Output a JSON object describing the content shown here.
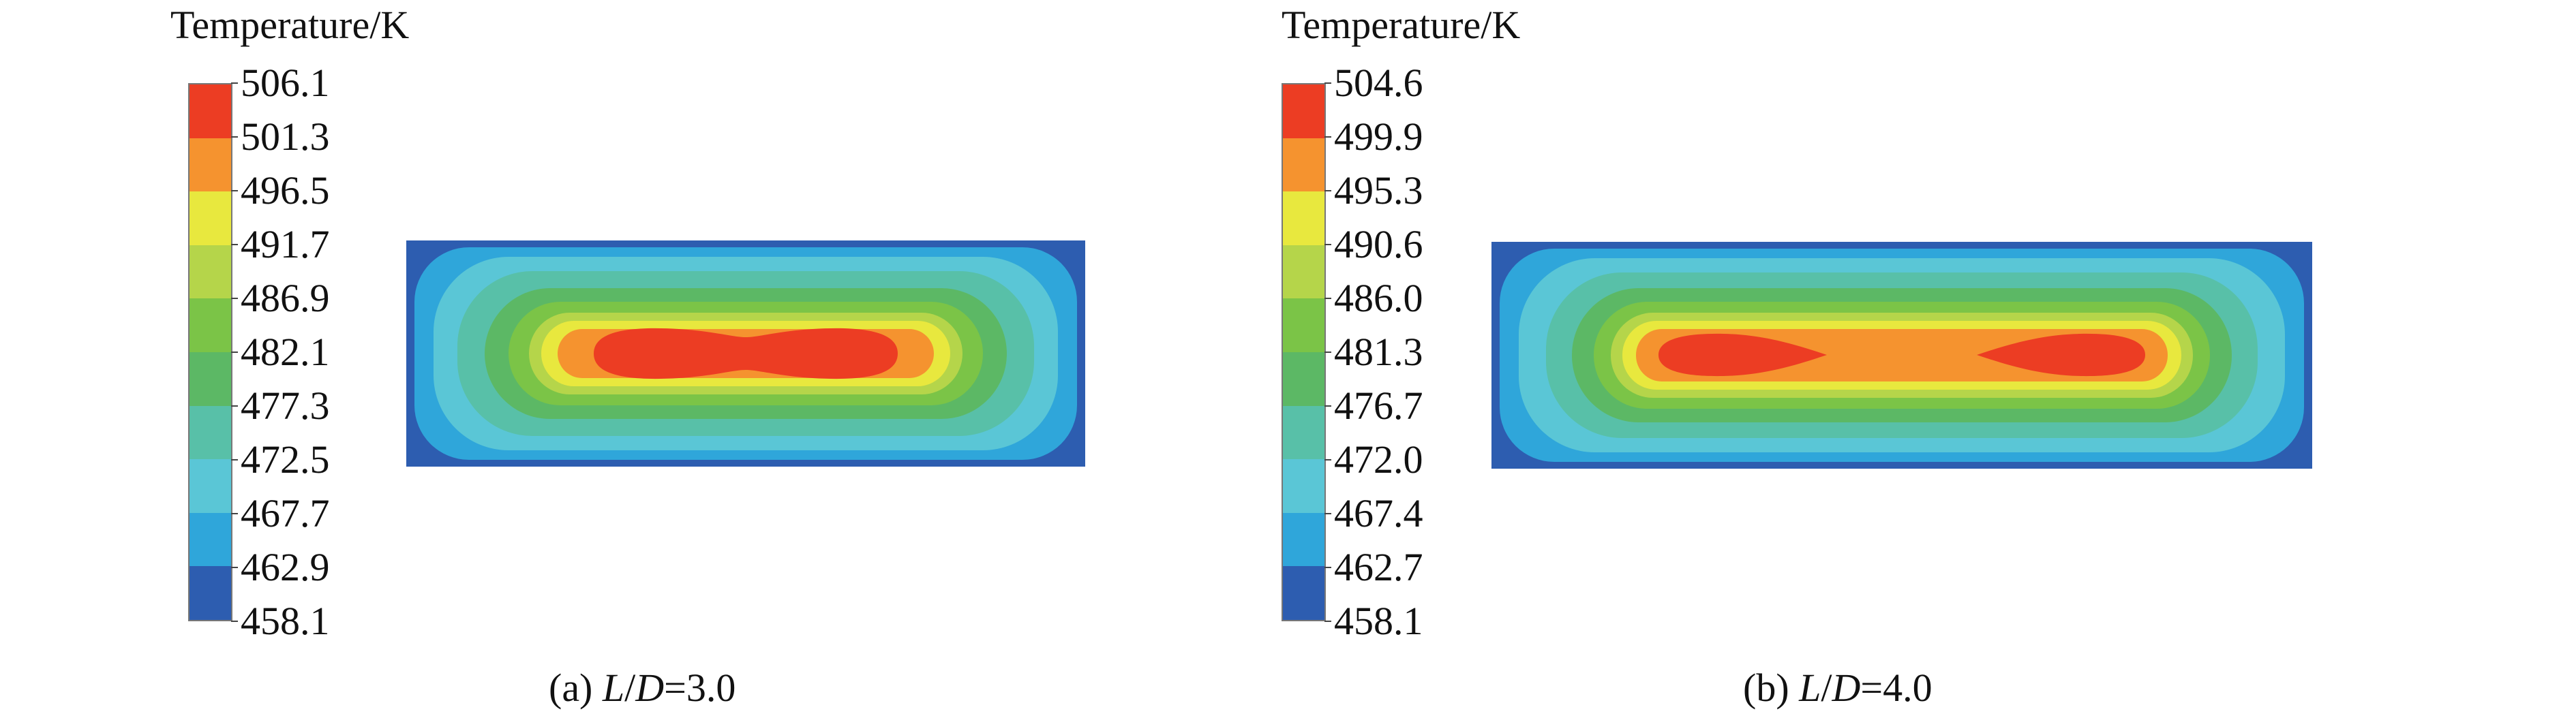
{
  "chart_data": [
    {
      "type": "heatmap",
      "panel": "a",
      "title": "Temperature/K",
      "colorbar_ticks": [
        "506.1",
        "501.3",
        "496.5",
        "491.7",
        "486.9",
        "482.1",
        "477.3",
        "472.5",
        "467.7",
        "462.9",
        "458.1"
      ],
      "colorbar_range": [
        458.1,
        506.1
      ],
      "caption_prefix": "(a) ",
      "caption_var_l": "L",
      "caption_slash": "/",
      "caption_var_d": "D",
      "caption_value": "=3.0",
      "ratio_LD": 3.0,
      "hot_zone": "single elongated core"
    },
    {
      "type": "heatmap",
      "panel": "b",
      "title": "Temperature/K",
      "colorbar_ticks": [
        "504.6",
        "499.9",
        "495.3",
        "490.6",
        "486.0",
        "481.3",
        "476.7",
        "472.0",
        "467.4",
        "462.7",
        "458.1"
      ],
      "colorbar_range": [
        458.1,
        504.6
      ],
      "caption_prefix": "(b) ",
      "caption_var_l": "L",
      "caption_slash": "/",
      "caption_var_d": "D",
      "caption_value": "=4.0",
      "ratio_LD": 4.0,
      "hot_zone": "two separated cores"
    }
  ],
  "colors": {
    "bands": [
      "#ec3d23",
      "#f5932f",
      "#e8e83e",
      "#b5d54a",
      "#7bc447",
      "#5cb865",
      "#58c0a8",
      "#5ac6d6",
      "#2fa6da",
      "#2d5db0"
    ]
  }
}
